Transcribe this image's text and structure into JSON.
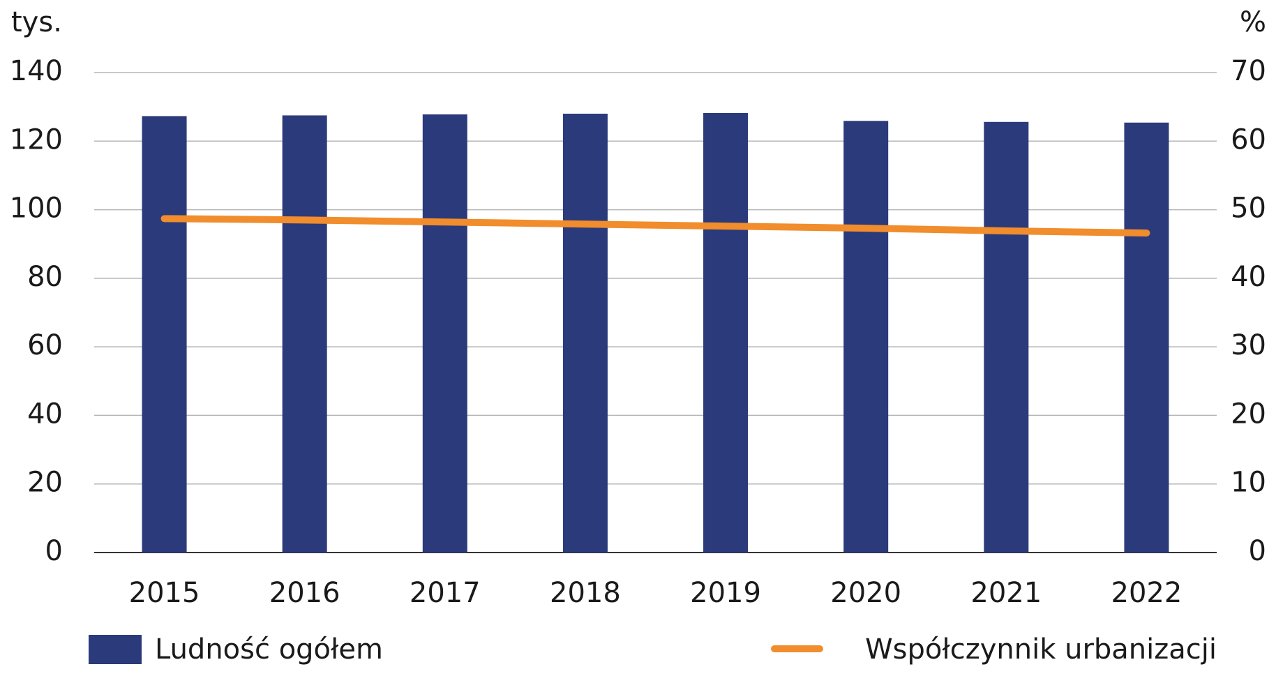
{
  "chart_data": {
    "type": "bar",
    "y_label": "tys.",
    "y2_label": "%",
    "categories": [
      "2015",
      "2016",
      "2017",
      "2018",
      "2019",
      "2020",
      "2021",
      "2022"
    ],
    "series": [
      {
        "name": "Ludność ogółem",
        "type": "bar",
        "color": "#2b3a7a",
        "values": [
          127.3,
          127.5,
          127.8,
          128.0,
          128.2,
          125.9,
          125.6,
          125.4
        ]
      },
      {
        "name": "Współczynnik urbanizacji",
        "type": "line",
        "axis": "y2",
        "color": "#f18d2c",
        "values": [
          48.7,
          48.5,
          48.2,
          47.9,
          47.6,
          47.3,
          46.9,
          46.6
        ]
      }
    ],
    "ylim": [
      0,
      140
    ],
    "yticks": [
      0,
      20,
      40,
      60,
      80,
      100,
      120,
      140
    ],
    "y2lim": [
      0,
      70
    ],
    "y2ticks": [
      0,
      10,
      20,
      30,
      40,
      50,
      60,
      70
    ],
    "grid": true
  }
}
